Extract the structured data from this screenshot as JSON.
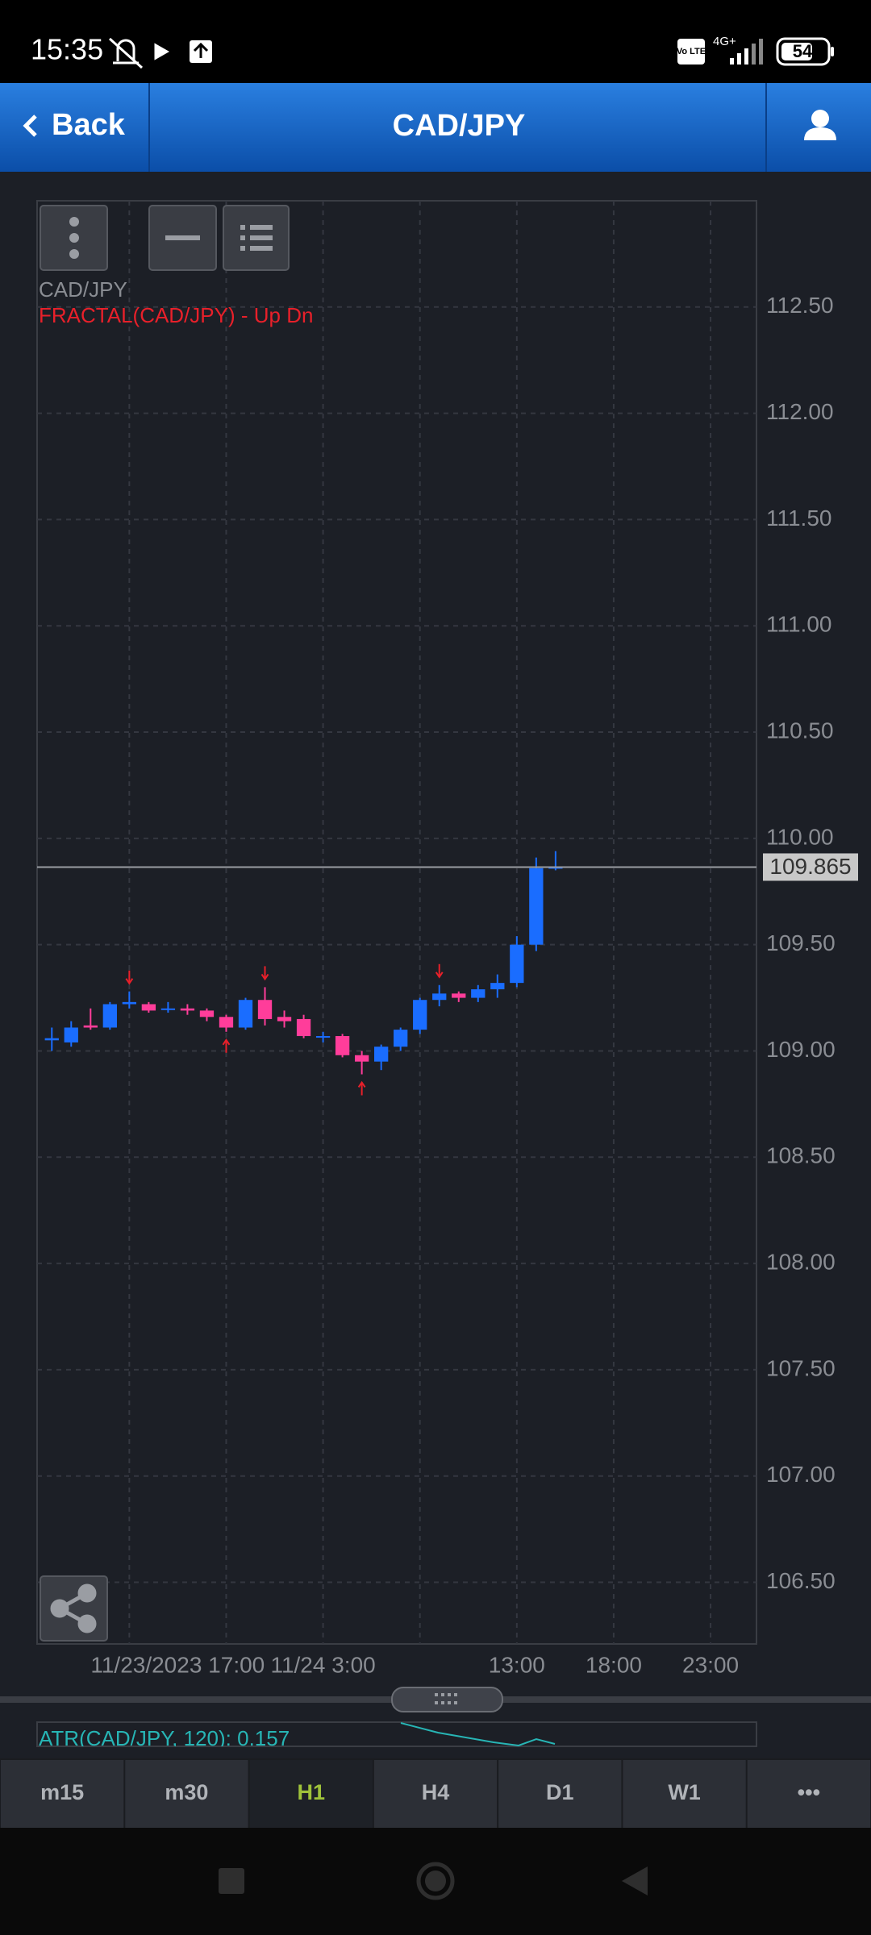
{
  "status_bar": {
    "time": "15:35",
    "network": "4G+",
    "volte": "Vo LTE",
    "battery": "54"
  },
  "header": {
    "back": "Back",
    "title": "CAD/JPY"
  },
  "legend": {
    "symbol": "CAD/JPY",
    "indicator": "FRACTAL(CAD/JPY) - Up Dn"
  },
  "chart_data": {
    "type": "candlestick",
    "open": [
      109.05,
      109.04,
      109.12,
      109.11,
      109.22,
      109.22,
      109.2,
      109.2,
      109.19,
      109.16,
      109.11,
      109.24,
      109.16,
      109.15,
      109.07,
      109.07,
      108.98,
      108.95,
      109.02,
      109.1,
      109.24,
      109.27,
      109.25,
      109.29,
      109.32,
      109.5,
      109.86
    ],
    "high": [
      109.11,
      109.14,
      109.2,
      109.23,
      109.28,
      109.23,
      109.23,
      109.22,
      109.2,
      109.17,
      109.25,
      109.3,
      109.19,
      109.17,
      109.09,
      109.08,
      109.0,
      109.03,
      109.11,
      109.25,
      109.31,
      109.28,
      109.31,
      109.36,
      109.54,
      109.91,
      109.94
    ],
    "low": [
      109.0,
      109.02,
      109.1,
      109.1,
      109.2,
      109.18,
      109.18,
      109.17,
      109.14,
      109.09,
      109.1,
      109.12,
      109.11,
      109.06,
      109.04,
      108.97,
      108.89,
      108.91,
      109.0,
      109.08,
      109.21,
      109.23,
      109.23,
      109.25,
      109.3,
      109.47,
      109.85
    ],
    "close": [
      109.06,
      109.11,
      109.11,
      109.22,
      109.23,
      109.19,
      109.2,
      109.19,
      109.16,
      109.11,
      109.24,
      109.15,
      109.14,
      109.07,
      109.07,
      108.98,
      108.95,
      109.02,
      109.1,
      109.24,
      109.27,
      109.25,
      109.29,
      109.32,
      109.5,
      109.86,
      109.865
    ],
    "up_color": "#1a6dff",
    "down_color": "#ff3d9a",
    "fractals": [
      {
        "candle": 4,
        "direction": "down"
      },
      {
        "candle": 9,
        "direction": "up"
      },
      {
        "candle": 11,
        "direction": "down"
      },
      {
        "candle": 16,
        "direction": "up"
      },
      {
        "candle": 20,
        "direction": "down"
      }
    ],
    "fractal_color": "#e8202a",
    "last_price": 109.865,
    "xlim": [
      -0.76,
      36.37
    ],
    "ylim": [
      106.21,
      113.0
    ],
    "yticks": [
      {
        "value": 106.5,
        "label": "106.50"
      },
      {
        "value": 107.0,
        "label": "107.00"
      },
      {
        "value": 107.5,
        "label": "107.50"
      },
      {
        "value": 108.0,
        "label": "108.00"
      },
      {
        "value": 108.5,
        "label": "108.50"
      },
      {
        "value": 109.0,
        "label": "109.00"
      },
      {
        "value": 109.5,
        "label": "109.50"
      },
      {
        "value": 110.0,
        "label": "110.00"
      },
      {
        "value": 110.5,
        "label": "110.50"
      },
      {
        "value": 111.0,
        "label": "111.00"
      },
      {
        "value": 111.5,
        "label": "111.50"
      },
      {
        "value": 112.0,
        "label": "112.00"
      },
      {
        "value": 112.5,
        "label": "112.50"
      }
    ],
    "xticks": [
      {
        "value": 4,
        "label": "11/23/2023 17:00"
      },
      {
        "value": 14,
        "label": "11/24 3:00"
      },
      {
        "value": 24,
        "label": "13:00"
      },
      {
        "value": 29,
        "label": "18:00"
      },
      {
        "value": 34,
        "label": "23:00"
      }
    ],
    "xgrid": [
      4,
      9,
      14,
      19,
      24,
      29,
      34
    ],
    "grid": true
  },
  "atr": {
    "label": "ATR(CAD/JPY, 120): 0.157"
  },
  "timeframes": {
    "items": [
      "m15",
      "m30",
      "H1",
      "H4",
      "D1",
      "W1",
      "•••"
    ],
    "selected": "H1"
  }
}
